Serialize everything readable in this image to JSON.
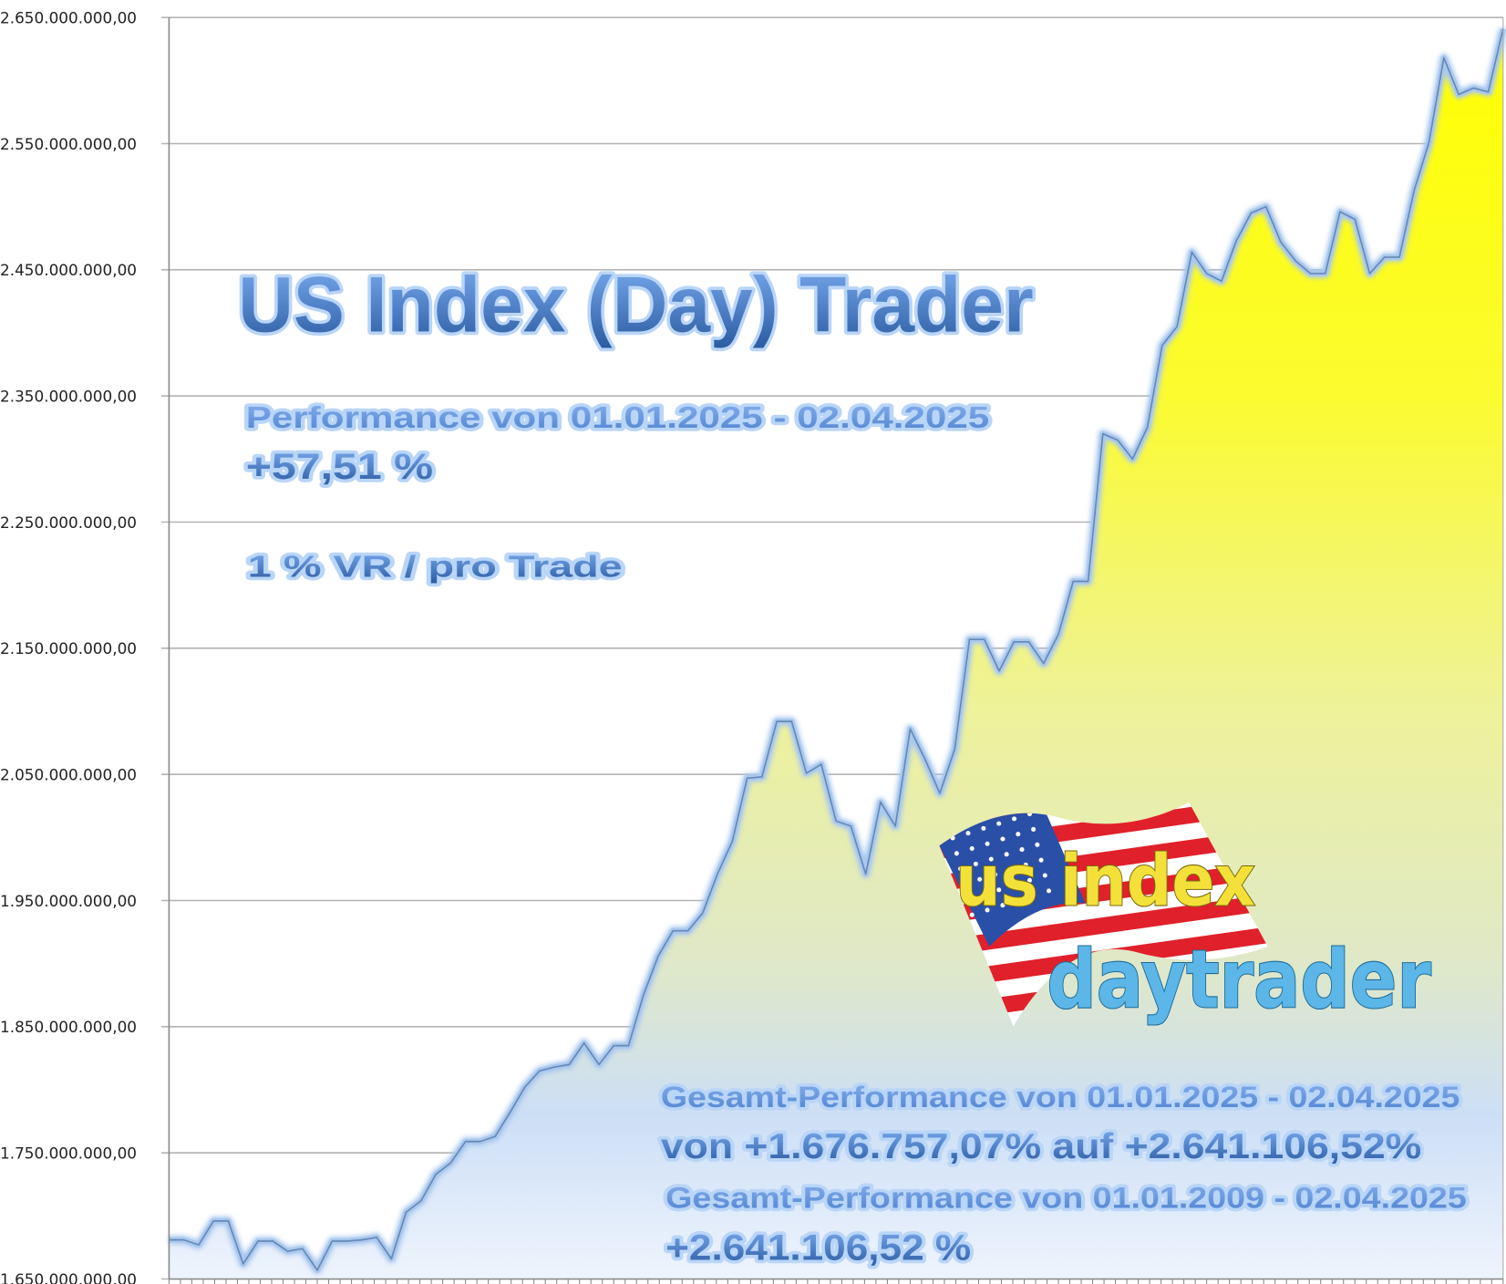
{
  "chart_data": {
    "type": "area",
    "title": "US Index (Day) Trader",
    "xlabel": "",
    "ylabel": "",
    "ylim": [
      1650000000,
      2650000000
    ],
    "y_ticks": [
      1650000000,
      1750000000,
      1850000000,
      1950000000,
      2050000000,
      2150000000,
      2250000000,
      2350000000,
      2450000000,
      2550000000,
      2650000000
    ],
    "y_tick_labels": [
      "1.650.000.000,00",
      "1.750.000.000,00",
      "1.850.000.000,00",
      "1.950.000.000,00",
      "2.050.000.000,00",
      "2.150.000.000,00",
      "2.250.000.000,00",
      "2.350.000.000,00",
      "2.450.000.000,00",
      "2.550.000.000,00",
      "2.650.000.000,00"
    ],
    "grid": true,
    "legend": "none",
    "fill_colors": {
      "top": "#ffff00",
      "bottom": "#dce8fa"
    },
    "line_color": "#a9c8ee",
    "values": [
      1681000000,
      1681000000,
      1677000000,
      1696000000,
      1696000000,
      1662000000,
      1680000000,
      1680000000,
      1672000000,
      1674000000,
      1657000000,
      1680000000,
      1680000000,
      1681000000,
      1683000000,
      1666000000,
      1703000000,
      1712000000,
      1733000000,
      1742000000,
      1759000000,
      1759000000,
      1763000000,
      1782000000,
      1802000000,
      1815000000,
      1818000000,
      1820000000,
      1837000000,
      1820000000,
      1835000000,
      1835000000,
      1875000000,
      1906000000,
      1926000000,
      1926000000,
      1940000000,
      1971000000,
      1997000000,
      2047000000,
      2048000000,
      2092000000,
      2092000000,
      2051000000,
      2058000000,
      2013000000,
      2009000000,
      1971000000,
      2028000000,
      2009000000,
      2086000000,
      2062000000,
      2035000000,
      2070000000,
      2157000000,
      2157000000,
      2132000000,
      2155000000,
      2155000000,
      2138000000,
      2161000000,
      2203000000,
      2203000000,
      2320000000,
      2315000000,
      2300000000,
      2325000000,
      2390000000,
      2405000000,
      2464000000,
      2447000000,
      2441000000,
      2473000000,
      2495000000,
      2500000000,
      2472000000,
      2457000000,
      2447000000,
      2447000000,
      2496000000,
      2490000000,
      2447000000,
      2460000000,
      2460000000,
      2513000000,
      2551000000,
      2618000000,
      2589000000,
      2594000000,
      2591000000,
      2641000000
    ],
    "x_tick_count": 117
  },
  "annotations": {
    "title": "US Index (Day) Trader",
    "period_label": "Performance  von  01.01.2025 - 02.04.2025",
    "period_value": "+57,51 %",
    "risk_label": "1 % VR / pro Trade",
    "total_label_1": "Gesamt-Performance  von  01.01.2025 - 02.04.2025",
    "total_value_1": "von +1.676.757,07% auf  +2.641.106,52%",
    "total_label_2": "Gesamt-Performance  von  01.01.2009 - 02.04.2025",
    "total_value_2": "+2.641.106,52 %"
  },
  "logo": {
    "line1": "us index",
    "line2": "daytrader"
  },
  "colors": {
    "text_top": "#76a6ec",
    "text_bottom": "#2a5aa0",
    "label_fill": "#6f9ee3"
  }
}
